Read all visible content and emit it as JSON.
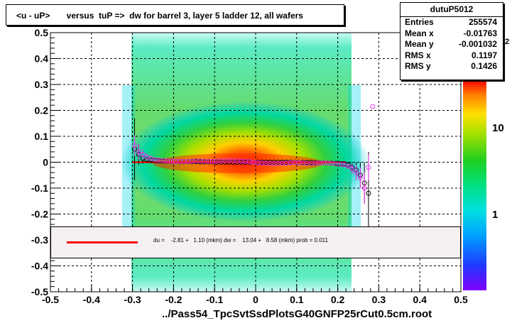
{
  "chart_data": {
    "type": "scatter",
    "title": "<u - uP>       versus  tuP =>  dw for barrel 3, layer 5 ladder 12, all wafers",
    "xlabel": "../Pass54_TpcSvtSsdPlotsG40GNFP25rCut0.5cm.root",
    "ylabel": "",
    "xlim": [
      -0.5,
      0.5
    ],
    "ylim": [
      -0.5,
      0.5
    ],
    "x_ticks": [
      "-0.5",
      "-0.4",
      "-0.3",
      "-0.2",
      "-0.1",
      "0",
      "0.1",
      "0.2",
      "0.3",
      "0.4",
      "0.5"
    ],
    "y_ticks": [
      "-0.5",
      "-0.4",
      "-0.3",
      "-0.2",
      "-0.1",
      "0",
      "0.1",
      "0.2",
      "0.3",
      "0.4",
      "0.5"
    ],
    "grid": true,
    "colorbar": {
      "scale": "log",
      "labels": [
        "1",
        "10"
      ],
      "exponent_fragment": "2"
    },
    "stats": {
      "name": "dutuP5012",
      "rows": [
        {
          "label": "Entries",
          "value": "255574"
        },
        {
          "label": "Mean x",
          "value": "-0.01763"
        },
        {
          "label": "Mean y",
          "value": "-0.001032"
        },
        {
          "label": "RMS x",
          "value": "0.1197"
        },
        {
          "label": "RMS y",
          "value": "0.1426"
        }
      ]
    },
    "fit": {
      "legend_text": "du =    -2.81 +   1.10 (mkm) dw =    13.04 +   8.58 (mkm) prob = 0.011",
      "color": "#ff0000",
      "x_range": [
        -0.3,
        0.22
      ],
      "y_value": 0.0
    },
    "series": [
      {
        "marker": "open-circle-black",
        "x": [
          -0.295,
          -0.285,
          -0.275,
          -0.265,
          -0.255,
          -0.245,
          -0.235,
          -0.225,
          -0.215,
          -0.205,
          -0.195,
          -0.185,
          -0.175,
          -0.165,
          -0.155,
          -0.145,
          -0.135,
          -0.125,
          -0.115,
          -0.105,
          -0.095,
          -0.085,
          -0.075,
          -0.065,
          -0.055,
          -0.045,
          -0.035,
          -0.025,
          -0.015,
          -0.005,
          0.005,
          0.015,
          0.025,
          0.035,
          0.045,
          0.055,
          0.065,
          0.075,
          0.085,
          0.095,
          0.105,
          0.115,
          0.125,
          0.135,
          0.145,
          0.155,
          0.165,
          0.175,
          0.185,
          0.195,
          0.205,
          0.215,
          0.225,
          0.235,
          0.245,
          0.255,
          0.265,
          0.275
        ],
        "y": [
          0.05,
          0.03,
          0.015,
          0.01,
          0.008,
          0.006,
          0.005,
          0.004,
          0.004,
          0.003,
          0.003,
          0.002,
          0.002,
          0.002,
          0.002,
          0.002,
          0.001,
          0.001,
          0.001,
          0.001,
          0.0,
          0.0,
          0.0,
          0.0,
          0.0,
          0.0,
          0.0,
          0.0,
          0.0,
          0.0,
          0.0,
          0.0,
          0.0,
          0.0,
          0.0,
          0.0,
          0.0,
          0.0,
          0.0,
          0.0,
          -0.001,
          -0.001,
          -0.001,
          -0.001,
          -0.002,
          -0.002,
          -0.002,
          -0.003,
          -0.003,
          -0.004,
          -0.005,
          -0.006,
          -0.01,
          -0.02,
          -0.03,
          -0.05,
          -0.08,
          -0.12
        ],
        "err": [
          0.12,
          0.04,
          0.02,
          0.01,
          0.008,
          0.006,
          0.005,
          0.004,
          0.004,
          0.003,
          0.003,
          0.003,
          0.003,
          0.003,
          0.003,
          0.003,
          0.003,
          0.003,
          0.003,
          0.003,
          0.003,
          0.003,
          0.003,
          0.003,
          0.003,
          0.003,
          0.003,
          0.003,
          0.003,
          0.003,
          0.003,
          0.003,
          0.003,
          0.003,
          0.003,
          0.003,
          0.003,
          0.003,
          0.003,
          0.003,
          0.003,
          0.003,
          0.003,
          0.003,
          0.003,
          0.003,
          0.003,
          0.003,
          0.003,
          0.004,
          0.005,
          0.006,
          0.01,
          0.02,
          0.03,
          0.05,
          0.08,
          0.16
        ]
      },
      {
        "marker": "open-circle-magenta",
        "x": [
          -0.295,
          -0.285,
          -0.275,
          -0.265,
          -0.255,
          -0.245,
          -0.235,
          -0.225,
          -0.215,
          -0.205,
          -0.195,
          -0.185,
          -0.175,
          -0.165,
          -0.155,
          -0.145,
          -0.135,
          -0.125,
          -0.115,
          -0.105,
          -0.095,
          -0.085,
          -0.075,
          -0.065,
          -0.055,
          -0.045,
          -0.035,
          -0.025,
          -0.015,
          -0.005,
          0.005,
          0.015,
          0.025,
          0.035,
          0.045,
          0.055,
          0.065,
          0.075,
          0.085,
          0.095,
          0.105,
          0.115,
          0.125,
          0.135,
          0.145,
          0.155,
          0.165,
          0.175,
          0.185,
          0.195,
          0.205,
          0.215,
          0.225,
          0.235,
          0.245,
          0.255,
          0.265,
          0.275,
          0.285
        ],
        "y": [
          0.065,
          0.04,
          0.03,
          0.02,
          0.015,
          0.01,
          0.008,
          0.006,
          0.005,
          0.004,
          0.003,
          0.003,
          0.003,
          0.003,
          0.004,
          0.005,
          0.005,
          0.004,
          0.003,
          0.003,
          0.004,
          0.005,
          0.006,
          0.007,
          0.006,
          0.005,
          0.004,
          0.003,
          0.002,
          0.0,
          -0.002,
          -0.003,
          -0.004,
          -0.005,
          -0.006,
          -0.005,
          -0.004,
          -0.003,
          -0.002,
          -0.001,
          -0.002,
          -0.003,
          -0.004,
          -0.005,
          -0.004,
          -0.003,
          -0.002,
          -0.003,
          -0.004,
          -0.006,
          -0.008,
          -0.01,
          -0.015,
          -0.025,
          -0.04,
          -0.06,
          -0.1,
          -0.02,
          0.215
        ],
        "err": [
          0.04,
          0.03,
          0.02,
          0.015,
          0.01,
          0.008,
          0.006,
          0.005,
          0.004,
          0.004,
          0.003,
          0.003,
          0.003,
          0.003,
          0.003,
          0.003,
          0.003,
          0.003,
          0.003,
          0.003,
          0.003,
          0.003,
          0.003,
          0.003,
          0.003,
          0.003,
          0.003,
          0.003,
          0.003,
          0.003,
          0.003,
          0.003,
          0.003,
          0.003,
          0.003,
          0.003,
          0.003,
          0.003,
          0.003,
          0.003,
          0.003,
          0.003,
          0.003,
          0.003,
          0.003,
          0.003,
          0.003,
          0.003,
          0.003,
          0.004,
          0.005,
          0.006,
          0.01,
          0.02,
          0.03,
          0.04,
          0.06,
          0.05,
          0.0
        ]
      }
    ]
  },
  "colors": {
    "plot_background": "#ffffff",
    "frame": "#000000",
    "fit_line": "#ff0000",
    "black_marker": "#000000",
    "magenta_marker": "#ee33ee"
  }
}
